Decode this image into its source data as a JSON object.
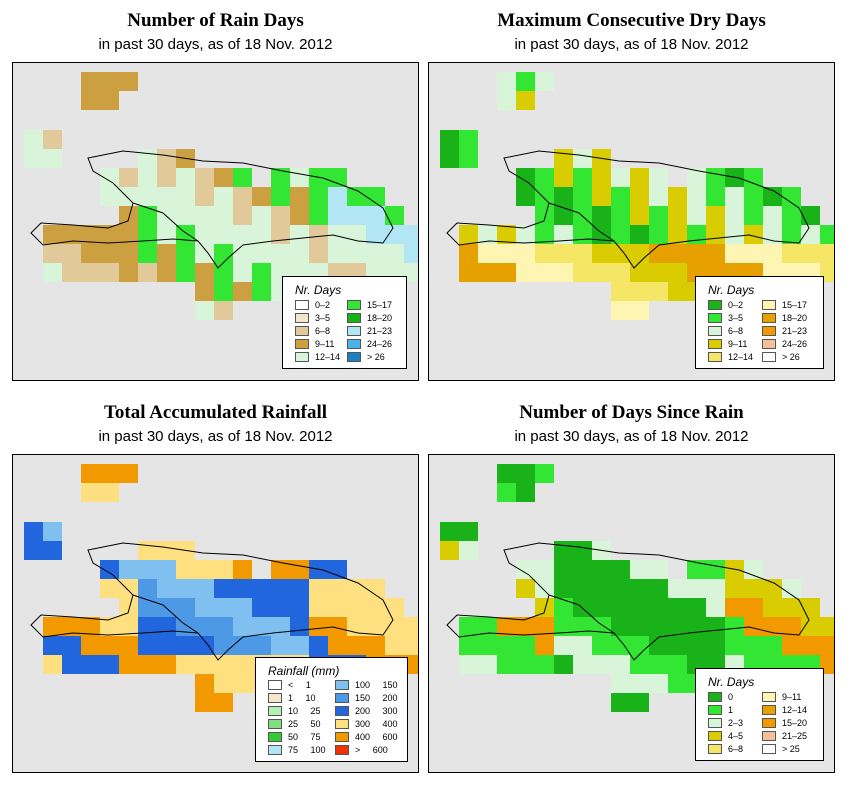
{
  "panels": [
    {
      "title": "Number of Rain Days",
      "subtitle": "in past 30 days, as of  18 Nov. 2012",
      "legend": {
        "title": "Nr. Days",
        "items": [
          {
            "label": "0–2",
            "color": "#ffffff"
          },
          {
            "label": "3–5",
            "color": "#f2e6cc"
          },
          {
            "label": "6–8",
            "color": "#e2c99a"
          },
          {
            "label": "9–11",
            "color": "#cca040"
          },
          {
            "label": "12–14",
            "color": "#d9f5d9"
          },
          {
            "label": "15–17",
            "color": "#33e633"
          },
          {
            "label": "18–20",
            "color": "#19b319"
          },
          {
            "label": "21–23",
            "color": "#b3e6f5"
          },
          {
            "label": "24–26",
            "color": "#4db3e6"
          },
          {
            "label": "> 26",
            "color": "#1a80c0"
          }
        ]
      }
    },
    {
      "title": "Maximum Consecutive Dry Days",
      "subtitle": "in past 30 days, as of  18 Nov. 2012",
      "legend": {
        "title": "Nr. Days",
        "items": [
          {
            "label": "0–2",
            "color": "#19b319"
          },
          {
            "label": "3–5",
            "color": "#33e633"
          },
          {
            "label": "6–8",
            "color": "#d9f5d9"
          },
          {
            "label": "9–11",
            "color": "#d9cc00"
          },
          {
            "label": "12–14",
            "color": "#f5e666"
          },
          {
            "label": "15–17",
            "color": "#fff5b3"
          },
          {
            "label": "18–20",
            "color": "#e6a000"
          },
          {
            "label": "21–23",
            "color": "#f29900"
          },
          {
            "label": "24–26",
            "color": "#f5c099"
          },
          {
            "label": "> 26",
            "color": "#ffffff"
          }
        ]
      }
    },
    {
      "title": "Total Accumulated Rainfall",
      "subtitle": "in past 30 days, as of  18 Nov. 2012",
      "legend": {
        "title": "Rainfall (mm)",
        "items": [
          {
            "label": "< 1",
            "color": "#ffffff"
          },
          {
            "label": "1 10",
            "color": "#f5e6cc"
          },
          {
            "label": "10 25",
            "color": "#b3f0b3"
          },
          {
            "label": "25 50",
            "color": "#80e080"
          },
          {
            "label": "50 75",
            "color": "#33cc33"
          },
          {
            "label": "75 100",
            "color": "#b3e6f5"
          },
          {
            "label": "100 150",
            "color": "#80c0f0"
          },
          {
            "label": "150 200",
            "color": "#4d99e6"
          },
          {
            "label": "200 300",
            "color": "#2266dd"
          },
          {
            "label": "300 400",
            "color": "#ffe080"
          },
          {
            "label": "400 600",
            "color": "#f29900"
          },
          {
            "label": "> 600",
            "color": "#ee3300"
          }
        ]
      }
    },
    {
      "title": "Number of Days Since Rain",
      "subtitle": "in past 30 days, as of  18 Nov. 2012",
      "legend": {
        "title": "Nr. Days",
        "items": [
          {
            "label": "0",
            "color": "#19b319"
          },
          {
            "label": "1",
            "color": "#33e633"
          },
          {
            "label": "2–3",
            "color": "#d9f5d9"
          },
          {
            "label": "4–5",
            "color": "#d9cc00"
          },
          {
            "label": "6–8",
            "color": "#f5e666"
          },
          {
            "label": "9–11",
            "color": "#fff5b3"
          },
          {
            "label": "12–14",
            "color": "#e6a000"
          },
          {
            "label": "15–20",
            "color": "#f29900"
          },
          {
            "label": "21–25",
            "color": "#f5c099"
          },
          {
            "label": "> 25",
            "color": "#ffffff"
          }
        ]
      }
    }
  ]
}
